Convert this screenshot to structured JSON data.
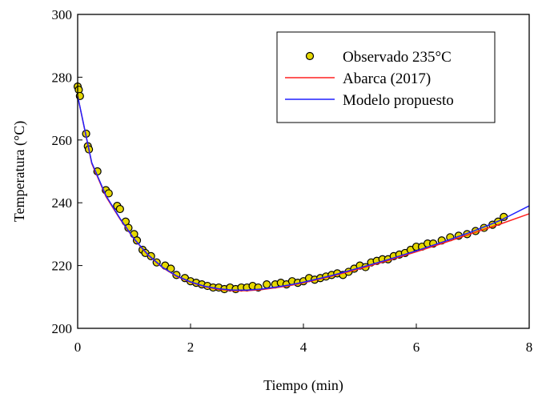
{
  "chart_data": {
    "type": "scatter",
    "xlabel": "Tiempo (min)",
    "ylabel": "Temperatura (°C)",
    "xlim": [
      0,
      8
    ],
    "ylim": [
      200,
      300
    ],
    "xticks": [
      "0",
      "2",
      "4",
      "6",
      "8"
    ],
    "yticks": [
      "200",
      "220",
      "240",
      "260",
      "280",
      "300"
    ],
    "grid": false,
    "legend_position": "top-right",
    "legend": [
      "Observado 235°C",
      "Abarca (2017)",
      "Modelo propuesto"
    ],
    "series": [
      {
        "name": "Observado 235°C",
        "kind": "markers",
        "color": "#e6d800",
        "x": [
          0.0,
          0.02,
          0.04,
          0.15,
          0.18,
          0.2,
          0.35,
          0.5,
          0.55,
          0.7,
          0.75,
          0.85,
          0.9,
          1.0,
          1.05,
          1.15,
          1.2,
          1.3,
          1.4,
          1.55,
          1.65,
          1.75,
          1.9,
          2.0,
          2.1,
          2.2,
          2.3,
          2.4,
          2.5,
          2.6,
          2.7,
          2.8,
          2.9,
          3.0,
          3.1,
          3.2,
          3.35,
          3.5,
          3.6,
          3.7,
          3.8,
          3.9,
          4.0,
          4.1,
          4.2,
          4.3,
          4.4,
          4.5,
          4.6,
          4.7,
          4.8,
          4.9,
          5.0,
          5.1,
          5.2,
          5.3,
          5.4,
          5.5,
          5.6,
          5.7,
          5.8,
          5.9,
          6.0,
          6.1,
          6.2,
          6.3,
          6.45,
          6.6,
          6.75,
          6.9,
          7.05,
          7.2,
          7.35,
          7.45,
          7.55
        ],
        "y": [
          277,
          276,
          274,
          262,
          258,
          257,
          250,
          244,
          243,
          239,
          238,
          234,
          232,
          230,
          228,
          225,
          224,
          223,
          221,
          220,
          219,
          217,
          216,
          215,
          214.5,
          214,
          213.5,
          213,
          213,
          212.5,
          213,
          212.5,
          213,
          213,
          213.5,
          213,
          214,
          214,
          214.5,
          214,
          215,
          214.5,
          215,
          216,
          215.5,
          216,
          216.5,
          217,
          217.5,
          217,
          218,
          219,
          220,
          219.5,
          221,
          221.5,
          222,
          222,
          223,
          223.5,
          224,
          225,
          226,
          226,
          227,
          227,
          228,
          229,
          229.5,
          230,
          231,
          232,
          233,
          234,
          235.5
        ]
      },
      {
        "name": "Abarca (2017)",
        "kind": "line",
        "color": "#ff2020",
        "x": [
          0.0,
          0.25,
          0.5,
          0.75,
          1.0,
          1.25,
          1.5,
          1.75,
          2.0,
          2.25,
          2.5,
          2.75,
          3.0,
          3.25,
          3.5,
          3.75,
          4.0,
          4.5,
          5.0,
          5.5,
          6.0,
          6.5,
          7.0,
          7.5,
          8.0
        ],
        "y": [
          274,
          252.5,
          242,
          234.8,
          228.4,
          223.3,
          219.4,
          216.6,
          214.7,
          213.3,
          212.4,
          212.0,
          212.0,
          212.3,
          212.9,
          213.6,
          214.5,
          216.6,
          219.0,
          221.6,
          224.4,
          227.3,
          230.3,
          233.3,
          236.5
        ]
      },
      {
        "name": "Modelo propuesto",
        "kind": "line",
        "color": "#2020ff",
        "x": [
          0.0,
          0.25,
          0.5,
          0.75,
          1.0,
          1.25,
          1.5,
          1.75,
          2.0,
          2.25,
          2.5,
          2.75,
          3.0,
          3.25,
          3.5,
          3.75,
          4.0,
          4.5,
          5.0,
          5.5,
          6.0,
          6.5,
          7.0,
          7.5,
          8.0
        ],
        "y": [
          274,
          252.8,
          242.3,
          235.0,
          228.5,
          223.4,
          219.5,
          216.7,
          214.8,
          213.4,
          212.6,
          212.2,
          212.2,
          212.5,
          213.1,
          213.8,
          214.7,
          216.8,
          219.3,
          221.9,
          224.7,
          227.7,
          230.9,
          234.5,
          239.0
        ]
      }
    ]
  }
}
